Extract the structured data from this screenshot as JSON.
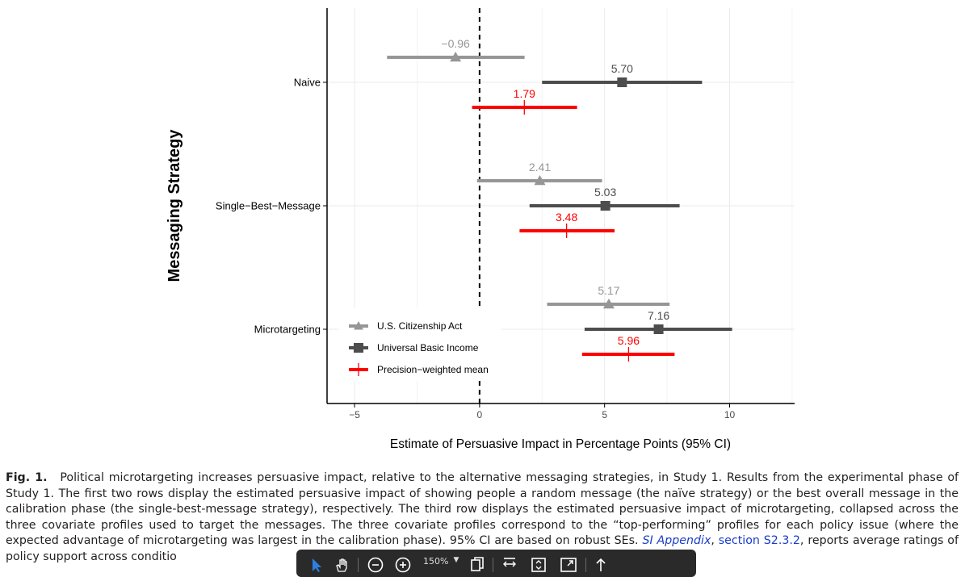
{
  "chart_data": {
    "type": "dot-interval",
    "ylabel": "Messaging Strategy",
    "xlabel": "Estimate of Persuasive Impact in Percentage Points (95% CI)",
    "xlim": [
      -6.1,
      12.6
    ],
    "xticks": [
      -5,
      0,
      5,
      10
    ],
    "xtick_labels": [
      "−5",
      "0",
      "5",
      "10"
    ],
    "categories": [
      "Naive",
      "Single−Best−Message",
      "Microtargeting"
    ],
    "reference_line": 0,
    "grid": true,
    "legend_position": "bottom-left",
    "series": [
      {
        "name": "U.S. Citizenship Act",
        "marker": "triangle",
        "color": "#969696",
        "label_color": "#969696",
        "estimates": [
          -0.96,
          2.41,
          5.17
        ],
        "labels": [
          "−0.96",
          "2.41",
          "5.17"
        ],
        "ci_low": [
          -3.7,
          -0.1,
          2.7
        ],
        "ci_high": [
          1.8,
          4.9,
          7.6
        ]
      },
      {
        "name": "Universal Basic Income",
        "marker": "square",
        "color": "#4d4d4d",
        "label_color": "#4d4d4d",
        "estimates": [
          5.7,
          5.03,
          7.16
        ],
        "labels": [
          "5.70",
          "5.03",
          "7.16"
        ],
        "ci_low": [
          2.5,
          2.0,
          4.2
        ],
        "ci_high": [
          8.9,
          8.0,
          10.1
        ]
      },
      {
        "name": "Precision−weighted mean",
        "marker": "plus",
        "color": "#ff0000",
        "label_color": "#ff0000",
        "estimates": [
          1.79,
          3.48,
          5.96
        ],
        "labels": [
          "1.79",
          "3.48",
          "5.96"
        ],
        "ci_low": [
          -0.3,
          1.6,
          4.1
        ],
        "ci_high": [
          3.9,
          5.4,
          7.8
        ]
      }
    ]
  },
  "caption": {
    "label": "Fig. 1.",
    "text_before": "Political microtargeting increases persuasive impact, relative to the alternative messaging strategies, in Study 1. Results from the experimental phase of Study 1. The first two rows display the estimated persuasive impact of showing people a random message (the naïve strategy) or the best overall message in the calibration phase (the single-best-message strategy), respectively. The third row displays the estimated persuasive impact of microtargeting, collapsed across the three covariate profiles used to target the messages. The three covariate profiles correspond to the “top-performing” profiles for each policy issue (where the expected advantage of microtargeting was largest in the calibration phase). 95% CI are based on robust SEs.",
    "link1": "SI Appendix",
    "comma": ",",
    "link2": "section S2.3.2",
    "text_after": ", reports average ratings of policy support across conditio"
  },
  "toolbar": {
    "zoom": "150%",
    "icons": [
      "select-arrow-icon",
      "hand-icon",
      "zoom-out-icon",
      "zoom-in-icon",
      "zoom-dropdown-icon",
      "copy-icon",
      "fit-width-icon",
      "fit-page-icon",
      "fullscreen-icon",
      "upload-icon"
    ]
  }
}
